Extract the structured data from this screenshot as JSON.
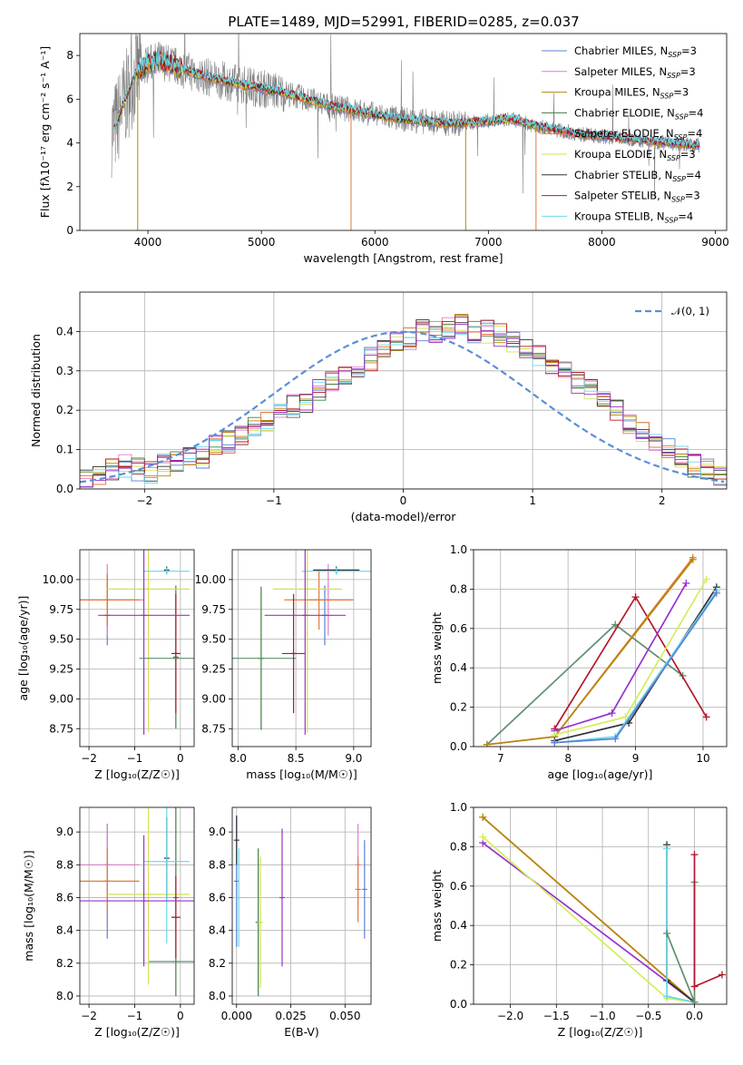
{
  "title": "PLATE=1489, MJD=52991, FIBERID=0285, z=0.037",
  "colors": {
    "Chabrier MILES": "#5b7fd4",
    "Salpeter MILES": "#e07fc9",
    "Kroupa MILES": "#b8860b",
    "Chabrier ELODIE": "#3f7f3f",
    "Salpeter ELODIE": "#e07b39",
    "Kroupa ELODIE": "#d4e157",
    "Chabrier STELIB": "#333333",
    "Salpeter STELIB": "#b2182b",
    "Kroupa STELIB": "#66d9e8",
    "ELODIE_line": "#5f8f6f",
    "purple": "#9932cc",
    "yellowgreen": "#d4ed5a",
    "dataGray": "#808080",
    "gaussian": "#5b8fd6"
  },
  "chart_data": [
    {
      "type": "line",
      "id": "spectrum",
      "title": "PLATE=1489, MJD=52991, FIBERID=0285, z=0.037",
      "xlabel": "wavelength [Angstrom, rest frame]",
      "ylabel": "Flux [f_λ10^-17 erg cm^-2 s^-1 A^-1]",
      "xlim": [
        3400,
        9100
      ],
      "ylim": [
        0,
        9
      ],
      "xticks": [
        4000,
        5000,
        6000,
        7000,
        8000,
        9000
      ],
      "yticks": [
        0,
        2,
        4,
        6,
        8
      ],
      "legend_position": "upper right",
      "series": [
        {
          "name": "Chabrier MILES, N_SSP=3"
        },
        {
          "name": "Salpeter MILES, N_SSP=3"
        },
        {
          "name": "Kroupa MILES, N_SSP=3"
        },
        {
          "name": "Chabrier ELODIE, N_SSP=4"
        },
        {
          "name": "Salpeter ELODIE, N_SSP=4"
        },
        {
          "name": "Kroupa ELODIE, N_SSP=3"
        },
        {
          "name": "Chabrier STELIB, N_SSP=4"
        },
        {
          "name": "Salpeter STELIB, N_SSP=3"
        },
        {
          "name": "Kroupa STELIB, N_SSP=4"
        }
      ],
      "model_continuum": {
        "x": [
          3700,
          3800,
          3900,
          4000,
          4100,
          4200,
          4400,
          4600,
          4800,
          5000,
          5200,
          5400,
          5600,
          5800,
          6000,
          6200,
          6400,
          6600,
          6800,
          7000,
          7200,
          7400,
          7600,
          7800,
          8000,
          8200,
          8400,
          8600,
          8800
        ],
        "y": [
          4.6,
          6.0,
          7.2,
          7.6,
          7.8,
          7.6,
          7.2,
          6.9,
          6.7,
          6.5,
          6.3,
          6.0,
          5.7,
          5.5,
          5.3,
          5.1,
          5.0,
          4.9,
          4.9,
          5.0,
          5.1,
          4.8,
          4.6,
          4.4,
          4.3,
          4.2,
          4.1,
          4.0,
          3.9
        ]
      }
    },
    {
      "type": "bar",
      "id": "residual_hist",
      "xlabel": "(data-model)/error",
      "ylabel": "Normed distribution",
      "xlim": [
        -2.5,
        2.5
      ],
      "ylim": [
        0,
        0.5
      ],
      "xticks": [
        -2,
        -1,
        0,
        1,
        2
      ],
      "yticks": [
        0.0,
        0.1,
        0.2,
        0.3,
        0.4
      ],
      "legend": [
        {
          "name": "𝒩(0, 1)"
        }
      ],
      "legend_position": "upper right",
      "bin_edges_start": -2.5,
      "bin_width": 0.1,
      "counts": [
        0.02,
        0.03,
        0.05,
        0.06,
        0.05,
        0.04,
        0.06,
        0.07,
        0.09,
        0.08,
        0.11,
        0.12,
        0.14,
        0.16,
        0.17,
        0.19,
        0.21,
        0.22,
        0.25,
        0.27,
        0.29,
        0.31,
        0.33,
        0.35,
        0.37,
        0.38,
        0.4,
        0.4,
        0.41,
        0.42,
        0.4,
        0.4,
        0.39,
        0.37,
        0.36,
        0.34,
        0.32,
        0.3,
        0.27,
        0.25,
        0.22,
        0.2,
        0.17,
        0.15,
        0.12,
        0.1,
        0.08,
        0.06,
        0.05,
        0.03
      ]
    },
    {
      "type": "scatter",
      "id": "age_vs_Z",
      "xlabel": "Z [log10(Z/Z_sun)]",
      "ylabel": "age [log10(age/yr)]",
      "xlim": [
        -2.2,
        0.3
      ],
      "ylim": [
        8.6,
        10.25
      ],
      "xticks": [
        -2,
        -1,
        0
      ],
      "yticks": [
        8.75,
        9.0,
        9.25,
        9.5,
        9.75,
        10.0
      ],
      "points": [
        {
          "color": "#5b7fd4",
          "x": -1.6,
          "xerr": 0.0,
          "y": 9.7,
          "yerr": 0.25
        },
        {
          "color": "#e07fc9",
          "x": -1.6,
          "xerr": 0.8,
          "y": 9.83,
          "yerr": 0.3
        },
        {
          "color": "#b8860b",
          "x": -1.6,
          "xerr": 0.0,
          "y": 9.83,
          "yerr": 0.2
        },
        {
          "color": "#3f7f3f",
          "x": -0.1,
          "xerr": 0.0,
          "y": 9.35,
          "yerr": 0.6
        },
        {
          "color": "#e07b39",
          "x": -1.6,
          "xerr": 0.7,
          "y": 9.83,
          "yerr": 0.22
        },
        {
          "color": "#d4e157",
          "x": -0.7,
          "xerr": 0.9,
          "y": 9.92,
          "yerr": 1.2
        },
        {
          "color": "#333333",
          "x": -0.3,
          "xerr": 0.0,
          "y": 10.08,
          "yerr": 0.03
        },
        {
          "color": "#b2182b",
          "x": -0.1,
          "xerr": 0.1,
          "y": 9.38,
          "yerr": 0.5
        },
        {
          "color": "#66d9e8",
          "x": -0.3,
          "xerr": 0.5,
          "y": 10.07,
          "yerr": 0.03
        },
        {
          "color": "#9932cc",
          "x": -0.8,
          "xerr": 1.0,
          "y": 9.7,
          "yerr": 1.0
        },
        {
          "color": "#5f8f6f",
          "x": -0.1,
          "xerr": 0.8,
          "y": 9.34,
          "yerr": 0.0
        }
      ]
    },
    {
      "type": "scatter",
      "id": "age_vs_mass",
      "xlabel": "mass [log10(M/M_sun)]",
      "ylabel": "",
      "xlim": [
        7.95,
        9.15
      ],
      "ylim": [
        8.6,
        10.25
      ],
      "xticks": [
        8.0,
        8.5,
        9.0
      ],
      "yticks": [
        8.75,
        9.0,
        9.25,
        9.5,
        9.75,
        10.0
      ],
      "points": [
        {
          "color": "#5b7fd4",
          "x": 8.75,
          "xerr": 0.0,
          "y": 9.7,
          "yerr": 0.25
        },
        {
          "color": "#e07fc9",
          "x": 8.78,
          "xerr": 0.2,
          "y": 9.83,
          "yerr": 0.3
        },
        {
          "color": "#e07b39",
          "x": 8.7,
          "xerr": 0.3,
          "y": 9.83,
          "yerr": 0.25
        },
        {
          "color": "#3f7f3f",
          "x": 8.2,
          "xerr": 0.0,
          "y": 9.34,
          "yerr": 0.6
        },
        {
          "color": "#5f8f6f",
          "x": 8.2,
          "xerr": 0.3,
          "y": 9.34,
          "yerr": 0.0
        },
        {
          "color": "#d4e157",
          "x": 8.6,
          "xerr": 0.3,
          "y": 9.92,
          "yerr": 1.2
        },
        {
          "color": "#333333",
          "x": 8.85,
          "xerr": 0.2,
          "y": 10.08,
          "yerr": 0.03
        },
        {
          "color": "#b2182b",
          "x": 8.48,
          "xerr": 0.1,
          "y": 9.38,
          "yerr": 0.5
        },
        {
          "color": "#66d9e8",
          "x": 8.85,
          "xerr": 0.3,
          "y": 10.07,
          "yerr": 0.03
        },
        {
          "color": "#9932cc",
          "x": 8.58,
          "xerr": 0.35,
          "y": 9.7,
          "yerr": 1.0
        }
      ]
    },
    {
      "type": "line",
      "id": "weight_vs_age",
      "xlabel": "age [log10(age/yr)]",
      "ylabel": "mass weight",
      "xlim": [
        6.6,
        10.35
      ],
      "ylim": [
        0,
        1.0
      ],
      "xticks": [
        7,
        8,
        9,
        10
      ],
      "yticks": [
        0.0,
        0.2,
        0.4,
        0.6,
        0.8,
        1.0
      ],
      "series": [
        {
          "color": "#5f8f6f",
          "x": [
            6.8,
            8.7,
            9.7
          ],
          "y": [
            0.01,
            0.62,
            0.36
          ]
        },
        {
          "color": "#b2182b",
          "x": [
            7.8,
            9.0,
            10.05
          ],
          "y": [
            0.09,
            0.76,
            0.15
          ]
        },
        {
          "color": "#e07b39",
          "x": [
            6.8,
            7.8,
            9.85
          ],
          "y": [
            0.01,
            0.05,
            0.96
          ]
        },
        {
          "color": "#b8860b",
          "x": [
            6.8,
            7.8,
            9.85
          ],
          "y": [
            0.01,
            0.05,
            0.95
          ]
        },
        {
          "color": "#9932cc",
          "x": [
            7.8,
            8.65,
            9.75
          ],
          "y": [
            0.08,
            0.17,
            0.83
          ]
        },
        {
          "color": "#d4ed5a",
          "x": [
            7.8,
            8.85,
            10.05
          ],
          "y": [
            0.06,
            0.15,
            0.85
          ]
        },
        {
          "color": "#333333",
          "x": [
            7.8,
            8.9,
            10.2
          ],
          "y": [
            0.03,
            0.12,
            0.81
          ]
        },
        {
          "color": "#66d9e8",
          "x": [
            7.8,
            8.7,
            10.2
          ],
          "y": [
            0.02,
            0.05,
            0.79
          ]
        },
        {
          "color": "#5b7fd4",
          "x": [
            7.8,
            8.7,
            10.2
          ],
          "y": [
            0.02,
            0.04,
            0.78
          ]
        }
      ]
    },
    {
      "type": "scatter",
      "id": "mass_vs_Z",
      "xlabel": "Z [log10(Z/Z_sun)]",
      "ylabel": "mass [log10(M/M_sun)]",
      "xlim": [
        -2.2,
        0.3
      ],
      "ylim": [
        7.95,
        9.15
      ],
      "xticks": [
        -2,
        -1,
        0
      ],
      "yticks": [
        8.0,
        8.2,
        8.4,
        8.6,
        8.8,
        9.0
      ],
      "points": [
        {
          "color": "#5b7fd4",
          "x": -1.6,
          "xerr": 0.0,
          "y": 8.7,
          "yerr": 0.35
        },
        {
          "color": "#e07fc9",
          "x": -1.6,
          "xerr": 0.7,
          "y": 8.8,
          "yerr": 0.25
        },
        {
          "color": "#e07b39",
          "x": -1.6,
          "xerr": 0.7,
          "y": 8.7,
          "yerr": 0.2
        },
        {
          "color": "#3f7f3f",
          "x": -0.1,
          "xerr": 0.0,
          "y": 8.6,
          "yerr": 0.6
        },
        {
          "color": "#5f8f6f",
          "x": -0.1,
          "xerr": 0.6,
          "y": 8.21,
          "yerr": 0.0
        },
        {
          "color": "#d4e157",
          "x": -0.7,
          "xerr": 0.9,
          "y": 8.62,
          "yerr": 0.55
        },
        {
          "color": "#333333",
          "x": -0.3,
          "xerr": 0.0,
          "y": 8.84,
          "yerr": 0.25
        },
        {
          "color": "#b2182b",
          "x": -0.1,
          "xerr": 0.1,
          "y": 8.48,
          "yerr": 0.25
        },
        {
          "color": "#66d9e8",
          "x": -0.3,
          "xerr": 0.5,
          "y": 8.82,
          "yerr": 0.5
        },
        {
          "color": "#9932cc",
          "x": -0.8,
          "xerr": 1.4,
          "y": 8.58,
          "yerr": 0.4
        }
      ]
    },
    {
      "type": "scatter",
      "id": "mass_vs_EBV",
      "xlabel": "E(B-V)",
      "ylabel": "",
      "xlim": [
        -0.002,
        0.062
      ],
      "ylim": [
        7.95,
        9.15
      ],
      "xticks": [
        0.0,
        0.025,
        0.05
      ],
      "yticks": [
        8.0,
        8.2,
        8.4,
        8.6,
        8.8,
        9.0
      ],
      "points": [
        {
          "color": "#5b7fd4",
          "x": 0.0,
          "y": 8.7,
          "yerr": 0.4
        },
        {
          "color": "#333333",
          "x": 0.0,
          "y": 8.95,
          "yerr": 0.15
        },
        {
          "color": "#66d9e8",
          "x": 0.001,
          "y": 8.6,
          "yerr": 0.3
        },
        {
          "color": "#3f7f3f",
          "x": 0.01,
          "y": 8.45,
          "yerr": 0.45
        },
        {
          "color": "#d4e157",
          "x": 0.011,
          "y": 8.45,
          "yerr": 0.4
        },
        {
          "color": "#9932cc",
          "x": 0.021,
          "y": 8.6,
          "yerr": 0.42
        },
        {
          "color": "#e07fc9",
          "x": 0.056,
          "y": 8.8,
          "yerr": 0.25
        },
        {
          "color": "#e07b39",
          "x": 0.056,
          "y": 8.65,
          "yerr": 0.2
        },
        {
          "color": "#5b7fd4",
          "x": 0.059,
          "y": 8.65,
          "yerr": 0.3
        }
      ]
    },
    {
      "type": "line",
      "id": "weight_vs_Z",
      "xlabel": "Z [log10(Z/Z_sun)]",
      "ylabel": "mass weight",
      "xlim": [
        -2.4,
        0.35
      ],
      "ylim": [
        0,
        1.0
      ],
      "xticks": [
        -2.0,
        -1.5,
        -1.0,
        -0.5,
        0.0
      ],
      "yticks": [
        0.0,
        0.2,
        0.4,
        0.6,
        0.8,
        1.0
      ],
      "series": [
        {
          "color": "#e07b39",
          "x": [
            -2.3,
            0.0
          ],
          "y": [
            0.95,
            0.01
          ]
        },
        {
          "color": "#b8860b",
          "x": [
            -2.3,
            0.0
          ],
          "y": [
            0.95,
            0.01
          ]
        },
        {
          "color": "#9932cc",
          "x": [
            -2.3,
            0.0
          ],
          "y": [
            0.82,
            0.01
          ]
        },
        {
          "color": "#d4ed5a",
          "x": [
            -2.3,
            -0.3,
            0.0
          ],
          "y": [
            0.85,
            0.03,
            0.01
          ]
        },
        {
          "color": "#333333",
          "x": [
            -0.3,
            -0.3,
            0.0
          ],
          "y": [
            0.81,
            0.12,
            0.01
          ]
        },
        {
          "color": "#66d9e8",
          "x": [
            -0.3,
            -0.3,
            0.0
          ],
          "y": [
            0.79,
            0.04,
            0.01
          ]
        },
        {
          "color": "#5f8f6f",
          "x": [
            -0.3,
            0.0,
            0.0
          ],
          "y": [
            0.36,
            0.01,
            0.62
          ]
        },
        {
          "color": "#b2182b",
          "x": [
            0.0,
            0.0,
            0.3
          ],
          "y": [
            0.76,
            0.09,
            0.15
          ]
        }
      ]
    }
  ]
}
